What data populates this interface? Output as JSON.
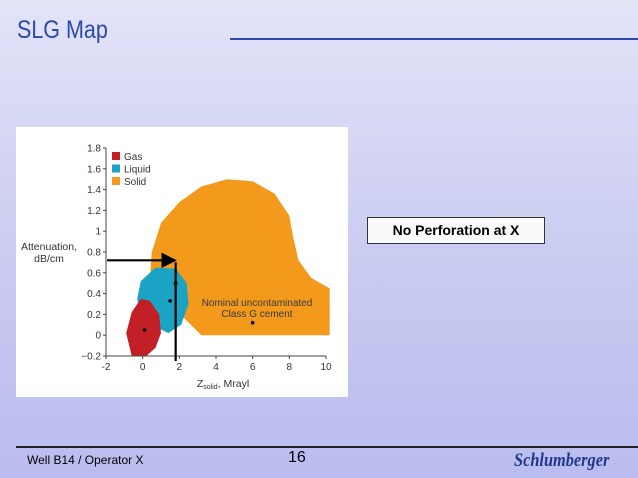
{
  "slide": {
    "title": "SLG Map",
    "callout": "No Perforation at X",
    "footer_left": "Well B14  / Operator X",
    "page_number": "16",
    "logo_text": "Schlumberger"
  },
  "chart_data": {
    "type": "scatter",
    "title": "",
    "xlabel": "Z",
    "xlabel_sub": "solid",
    "xlabel_rest": ", Mrayl",
    "ylabel_lines": [
      "Attenuation,",
      "dB/cm"
    ],
    "xlim": [
      -2,
      10
    ],
    "ylim": [
      -0.2,
      1.8
    ],
    "x_ticks": [
      "-2",
      "0",
      "2",
      "4",
      "6",
      "8",
      "10"
    ],
    "x_tick_values": [
      -2,
      0,
      2,
      4,
      6,
      8,
      10
    ],
    "y_ticks": [
      "1.8",
      "1.6",
      "1.4",
      "1.2",
      "1",
      "0.8",
      "0.6",
      "0.4",
      "0.2",
      "0",
      "−0.2"
    ],
    "y_tick_values": [
      1.8,
      1.6,
      1.4,
      1.2,
      1.0,
      0.8,
      0.6,
      0.4,
      0.2,
      0.0,
      -0.2
    ],
    "legend_position": "top-left",
    "series": [
      {
        "name": "Gas",
        "color": "#c21f26",
        "center": [
          0.1,
          0.05
        ]
      },
      {
        "name": "Liquid",
        "color": "#1ba3c4",
        "center": [
          1.5,
          0.33
        ]
      },
      {
        "name": "Solid",
        "color": "#f39a1c",
        "center": [
          6.0,
          0.12
        ]
      }
    ],
    "annotation": {
      "lines": [
        "Nominal uncontaminated",
        "Class G cement"
      ],
      "point": [
        6.0,
        0.12
      ]
    },
    "marker_point": [
      1.8,
      0.5
    ],
    "guide_lines": {
      "horizontal_y": 0.72,
      "vertical_x": 1.8,
      "color": "#000000"
    },
    "grid": false
  }
}
